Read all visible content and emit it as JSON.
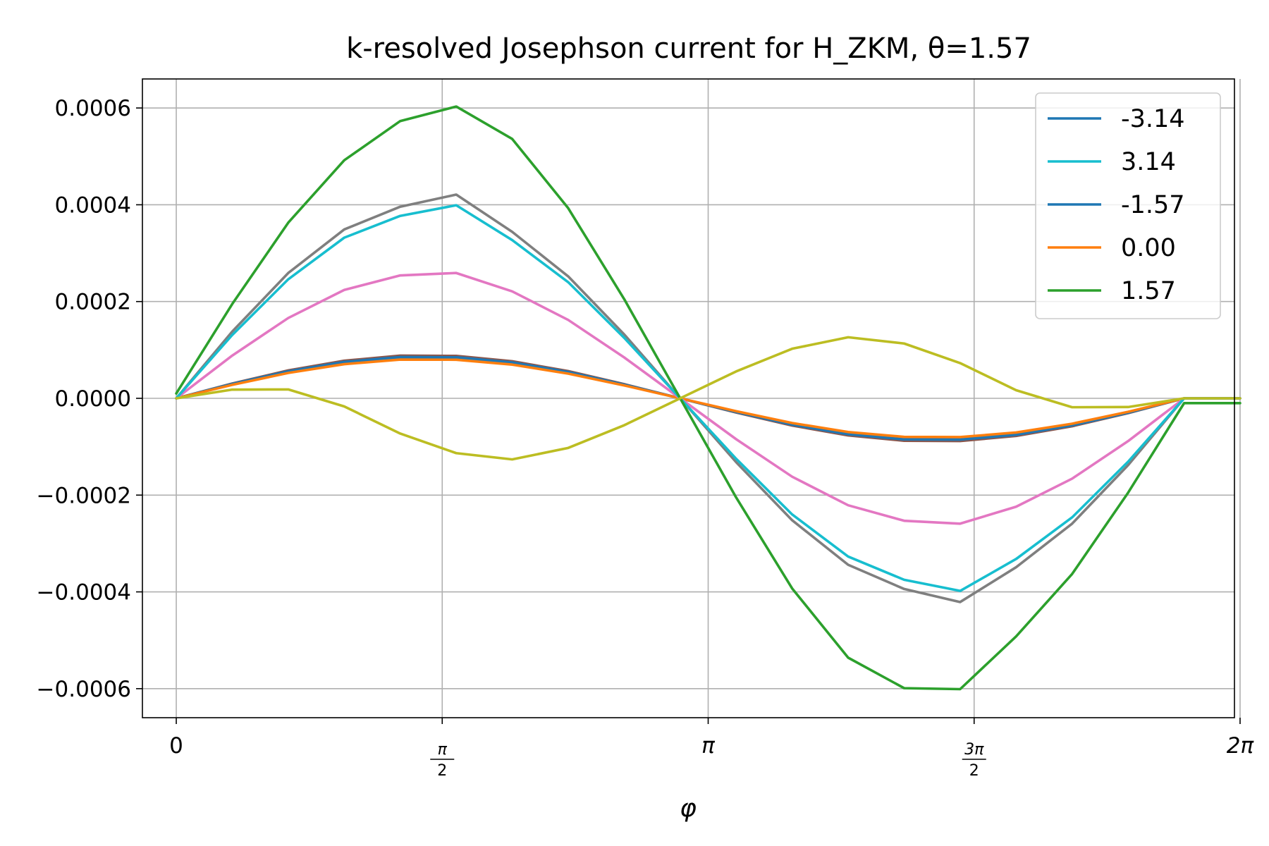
{
  "chart_data": {
    "type": "line",
    "title": "k-resolved Josephson current for H_ZKM, θ=1.57",
    "xlabel": "φ",
    "ylabel": "",
    "xlim": [
      -0.2,
      6.25
    ],
    "ylim": [
      -0.00066,
      0.00066
    ],
    "grid": true,
    "legend": "top-right",
    "x_ticks": [
      {
        "value": 0,
        "label": "0"
      },
      {
        "value": 1.5708,
        "num": "π",
        "den": "2"
      },
      {
        "value": 3.1416,
        "label": "π"
      },
      {
        "value": 4.7124,
        "num": "3π",
        "den": "2"
      },
      {
        "value": 6.2832,
        "label": "2π"
      }
    ],
    "y_ticks": [
      {
        "value": 0.0006,
        "label": "0.0006"
      },
      {
        "value": 0.0004,
        "label": "0.0004"
      },
      {
        "value": 0.0002,
        "label": "0.0002"
      },
      {
        "value": 0.0,
        "label": "0.0000"
      },
      {
        "value": -0.0002,
        "label": "−0.0002"
      },
      {
        "value": -0.0004,
        "label": "−0.0004"
      },
      {
        "value": -0.0006,
        "label": "−0.0006"
      }
    ],
    "x": [
      0,
      0.3307,
      0.6614,
      0.9921,
      1.3228,
      1.6535,
      1.9842,
      2.3149,
      2.6456,
      2.9763,
      3.307,
      3.6377,
      3.9684,
      4.2991,
      4.6298,
      4.9605,
      5.2912,
      5.6219,
      5.9526,
      6.2832
    ],
    "series": [
      {
        "name": "-3.14",
        "color": "#1f77b4",
        "values": [
          0.0,
          2.96e-05,
          5.57e-05,
          7.51e-05,
          8.52e-05,
          8.48e-05,
          7.4e-05,
          5.43e-05,
          2.83e-05,
          0.0,
          -2.83e-05,
          -5.43e-05,
          -7.4e-05,
          -8.48e-05,
          -8.52e-05,
          -7.51e-05,
          -5.57e-05,
          -2.96e-05,
          0.0,
          0.0
        ]
      },
      {
        "name": "3.14",
        "color": "#17becf",
        "values": [
          0.0,
          0.000131,
          0.000246,
          0.000332,
          0.000377,
          0.000399,
          0.000327,
          0.00024,
          0.000125,
          0.0,
          -0.000125,
          -0.00024,
          -0.000327,
          -0.000375,
          -0.000398,
          -0.000332,
          -0.000246,
          -0.000131,
          0.0,
          0.0
        ]
      },
      {
        "name": "-1.57",
        "color": "#1f77b4",
        "values": [
          0.0,
          2.96e-05,
          5.57e-05,
          7.51e-05,
          8.52e-05,
          8.48e-05,
          7.4e-05,
          5.43e-05,
          2.83e-05,
          0.0,
          -2.83e-05,
          -5.43e-05,
          -7.4e-05,
          -8.48e-05,
          -8.52e-05,
          -7.51e-05,
          -5.57e-05,
          -2.96e-05,
          0.0,
          0.0
        ]
      },
      {
        "name": "0.00",
        "color": "#ff7f0e",
        "values": [
          0.0,
          2.78e-05,
          5.24e-05,
          7.06e-05,
          8.01e-05,
          7.97e-05,
          6.96e-05,
          5.1e-05,
          2.66e-05,
          0.0,
          -2.66e-05,
          -5.1e-05,
          -6.96e-05,
          -7.97e-05,
          -8.01e-05,
          -7.06e-05,
          -5.24e-05,
          -2.78e-05,
          0.0,
          0.0
        ]
      },
      {
        "name": "1.57",
        "color": "#2ca02c",
        "values": [
          1e-05,
          0.000195,
          0.000363,
          0.000492,
          0.000573,
          0.000603,
          0.000536,
          0.000393,
          0.000205,
          0.0,
          -0.000205,
          -0.000393,
          -0.000536,
          -0.000599,
          -0.000601,
          -0.000492,
          -0.000363,
          -0.000195,
          -1e-05,
          -1e-05
        ]
      },
      {
        "name": "",
        "color": "#8c564b",
        "values": [
          0.0,
          3.06e-05,
          5.77e-05,
          7.77e-05,
          8.82e-05,
          8.77e-05,
          7.66e-05,
          5.62e-05,
          2.93e-05,
          0.0,
          -2.93e-05,
          -5.62e-05,
          -7.66e-05,
          -8.77e-05,
          -8.82e-05,
          -7.77e-05,
          -5.77e-05,
          -3.06e-05,
          0.0,
          0.0
        ]
      },
      {
        "name": "",
        "color": "#e377c2",
        "values": [
          0.0,
          8.84e-05,
          0.000166,
          0.000224,
          0.000254,
          0.000259,
          0.000221,
          0.000162,
          8.45e-05,
          0.0,
          -8.45e-05,
          -0.000162,
          -0.000221,
          -0.000253,
          -0.000259,
          -0.000224,
          -0.000166,
          -8.84e-05,
          0.0,
          0.0
        ]
      },
      {
        "name": "",
        "color": "#7f7f7f",
        "values": [
          0.0,
          0.000138,
          0.000259,
          0.000349,
          0.000396,
          0.000421,
          0.000344,
          0.000252,
          0.000132,
          0.0,
          -0.000132,
          -0.000252,
          -0.000344,
          -0.000394,
          -0.000421,
          -0.000349,
          -0.000259,
          -0.000138,
          0.0,
          0.0
        ]
      },
      {
        "name": "",
        "color": "#bcbd22",
        "values": [
          0.0,
          1.8e-05,
          1.84e-05,
          -1.68e-05,
          -7.28e-05,
          -0.0001133,
          -0.0001262,
          -0.0001025,
          -5.56e-05,
          0.0,
          5.56e-05,
          0.0001025,
          0.0001262,
          0.0001133,
          7.28e-05,
          1.68e-05,
          -1.84e-05,
          -1.8e-05,
          0.0,
          0.0
        ]
      }
    ]
  }
}
